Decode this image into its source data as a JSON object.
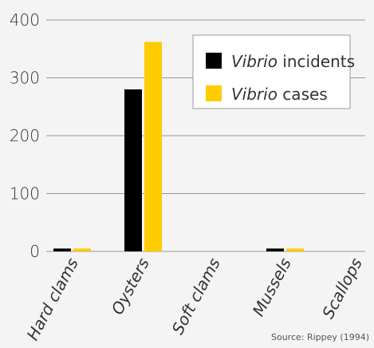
{
  "colors": {
    "background": "#f4f4f4",
    "grid": "#999999",
    "text": "#333333"
  },
  "chart_data": {
    "type": "bar",
    "categories": [
      "Hard clams",
      "Oysters",
      "Soft clams",
      "Mussels",
      "Scallops"
    ],
    "series": [
      {
        "name": "Vibrio incidents",
        "color": "#000000",
        "values": [
          5,
          280,
          0,
          5,
          0
        ]
      },
      {
        "name": "Vibrio cases",
        "color": "#ffcc00",
        "values": [
          5,
          362,
          0,
          5,
          0
        ]
      }
    ],
    "y_ticks": [
      0,
      100,
      200,
      300,
      400
    ],
    "ylim": [
      0,
      400
    ],
    "grid": true,
    "legend": {
      "position": "top-right",
      "items": [
        {
          "italic": "Vibrio",
          "rest": " incidents"
        },
        {
          "italic": "Vibrio",
          "rest": " cases"
        }
      ]
    },
    "source": "Source: Rippey (1994)"
  }
}
